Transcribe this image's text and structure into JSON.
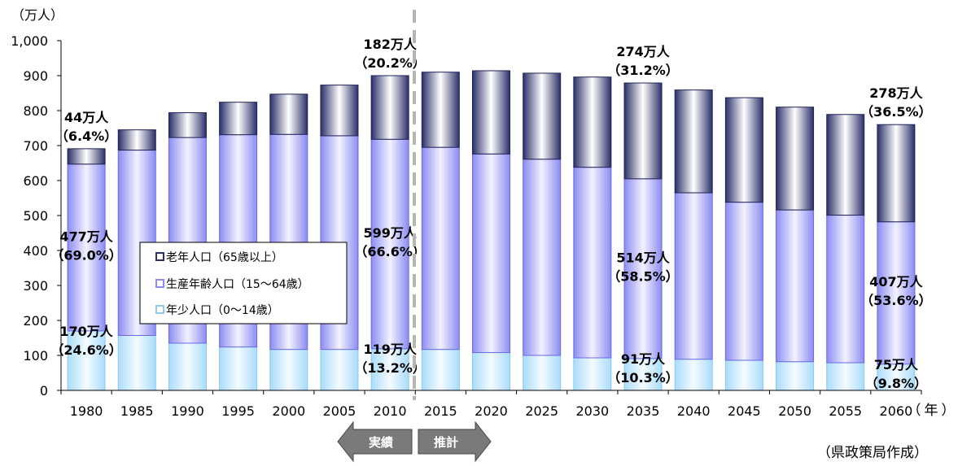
{
  "chart_data": {
    "type": "bar",
    "stacked": true,
    "y_unit_label": "（万人）",
    "x_unit_label": "（年）",
    "ylim": [
      0,
      1000
    ],
    "y_ticks": [
      "0",
      "100",
      "200",
      "300",
      "400",
      "500",
      "600",
      "700",
      "800",
      "900",
      "1,000"
    ],
    "grid": false,
    "legend_position": "center-left",
    "categories": [
      "1980",
      "1985",
      "1990",
      "1995",
      "2000",
      "2005",
      "2010",
      "2015",
      "2020",
      "2025",
      "2030",
      "2035",
      "2040",
      "2045",
      "2050",
      "2055",
      "2060"
    ],
    "series": [
      {
        "name": "年少人口（0～14歳）",
        "color": "#c9ecff",
        "values": [
          170,
          157,
          135,
          124,
          117,
          117,
          119,
          117,
          108,
          100,
          93,
          91,
          89,
          86,
          82,
          79,
          75
        ]
      },
      {
        "name": "生産年齢人口（15～64歳）",
        "color": "#9f9ff5",
        "values": [
          477,
          530,
          588,
          607,
          615,
          611,
          599,
          578,
          568,
          561,
          545,
          514,
          476,
          452,
          434,
          422,
          407
        ]
      },
      {
        "name": "老年人口（65歳以上）",
        "color": "#3b3f7a",
        "values": [
          44,
          58,
          71,
          93,
          115,
          145,
          182,
          215,
          238,
          246,
          258,
          274,
          294,
          299,
          294,
          288,
          278
        ]
      }
    ],
    "annotations": [
      {
        "category": "1980",
        "series": 2,
        "lines": [
          "44万人",
          "（6.4%）"
        ]
      },
      {
        "category": "1980",
        "series": 1,
        "lines": [
          "477万人",
          "（69.0%）"
        ]
      },
      {
        "category": "1980",
        "series": 0,
        "lines": [
          "170万人",
          "（24.6%）"
        ]
      },
      {
        "category": "2010",
        "series": 2,
        "lines": [
          "182万人",
          "（20.2%）"
        ]
      },
      {
        "category": "2010",
        "series": 1,
        "lines": [
          "599万人",
          "（66.6%）"
        ]
      },
      {
        "category": "2010",
        "series": 0,
        "lines": [
          "119万人",
          "（13.2%）"
        ]
      },
      {
        "category": "2035",
        "series": 2,
        "lines": [
          "274万人",
          "（31.2%）"
        ]
      },
      {
        "category": "2035",
        "series": 1,
        "lines": [
          "514万人",
          "（58.5%）"
        ]
      },
      {
        "category": "2035",
        "series": 0,
        "lines": [
          "91万人",
          "（10.3%）"
        ]
      },
      {
        "category": "2060",
        "series": 2,
        "lines": [
          "278万人",
          "（36.5%）"
        ]
      },
      {
        "category": "2060",
        "series": 1,
        "lines": [
          "407万人",
          "（53.6%）"
        ]
      },
      {
        "category": "2060",
        "series": 0,
        "lines": [
          "75万人",
          "（9.8%）"
        ]
      }
    ],
    "divider_after": "2010",
    "arrow_left_label": "実績",
    "arrow_right_label": "推計",
    "source_note": "（県政策局作成）"
  }
}
